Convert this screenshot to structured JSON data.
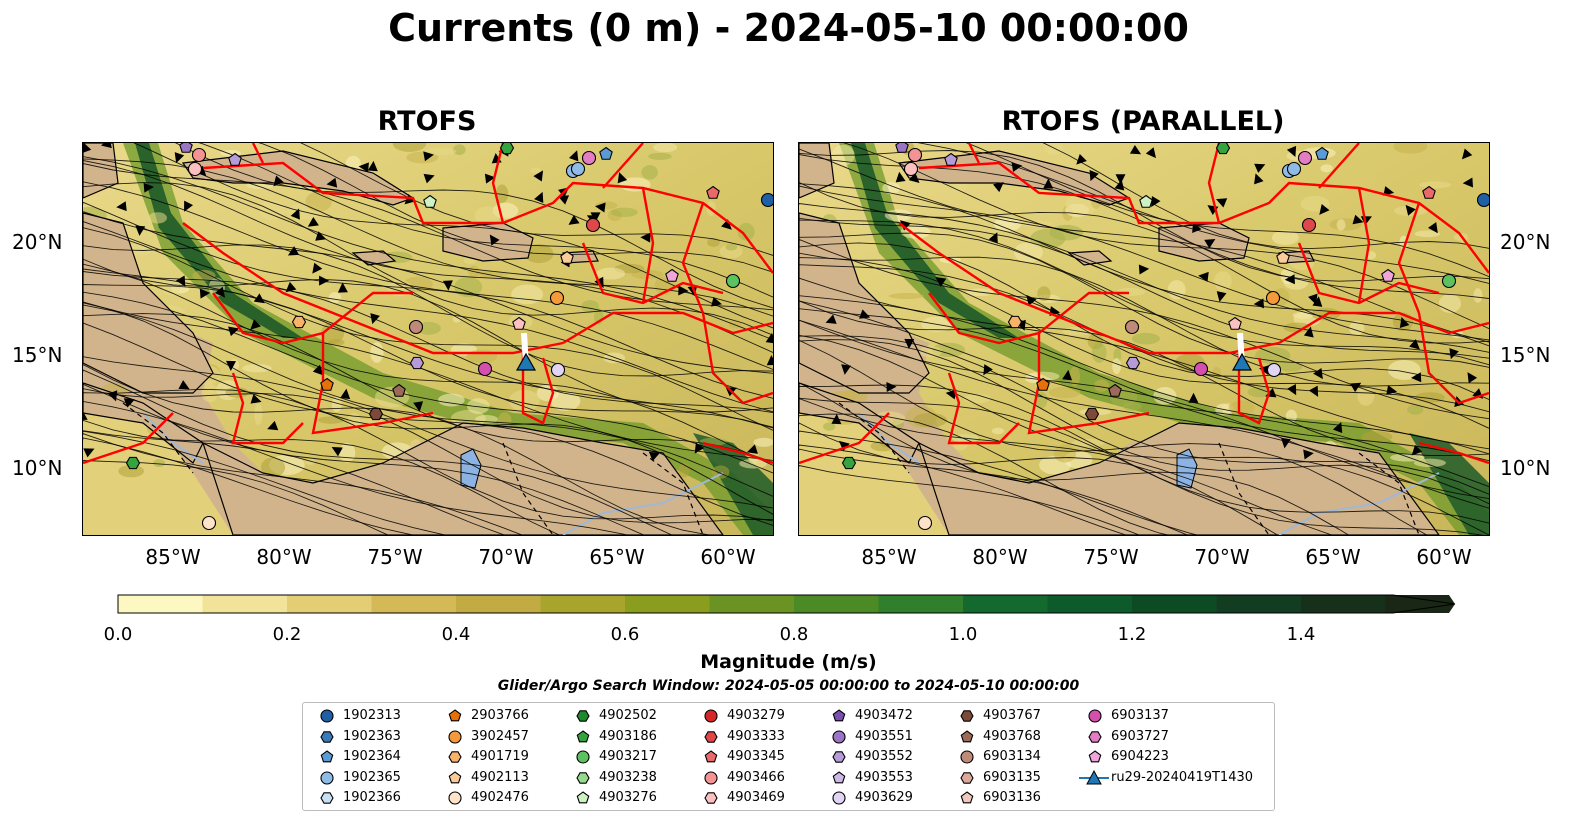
{
  "title": "Currents (0 m) - 2024-05-10 00:00:00",
  "panels": [
    {
      "title": "RTOFS"
    },
    {
      "title": "RTOFS (PARALLEL)"
    }
  ],
  "lat_labels": [
    "20°N",
    "15°N",
    "10°N"
  ],
  "lon_labels": [
    "85°W",
    "80°W",
    "75°W",
    "70°W",
    "65°W",
    "60°W"
  ],
  "colorbar": {
    "label": "Magnitude (m/s)",
    "tick_labels": [
      "0.0",
      "0.2",
      "0.4",
      "0.6",
      "0.8",
      "1.0",
      "1.2",
      "1.4"
    ],
    "colors": [
      "#fdf8c2",
      "#f1e39a",
      "#e3cd75",
      "#d5b957",
      "#c2ab42",
      "#a9a52c",
      "#8a9d1f",
      "#6b9323",
      "#4c8a26",
      "#2f7f2c",
      "#14692f",
      "#0d5a2a",
      "#0d4b25",
      "#123d20",
      "#17301a",
      "#1a2616"
    ]
  },
  "search_window": "Glider/Argo Search Window: 2024-05-05 00:00:00 to 2024-05-10 00:00:00",
  "legend": [
    [
      {
        "label": "1902313",
        "marker": "circle",
        "color": "#1f5fa6"
      },
      {
        "label": "1902363",
        "marker": "hexagon",
        "color": "#3a7ab8"
      },
      {
        "label": "1902364",
        "marker": "pentagon",
        "color": "#5b9bd5"
      },
      {
        "label": "1902365",
        "marker": "circle",
        "color": "#8fbce6"
      },
      {
        "label": "1902366",
        "marker": "hexagon",
        "color": "#c8e0f4"
      }
    ],
    [
      {
        "label": "2903766",
        "marker": "pentagon",
        "color": "#e6700a"
      },
      {
        "label": "3902457",
        "marker": "circle",
        "color": "#f59a3a"
      },
      {
        "label": "4901719",
        "marker": "hexagon",
        "color": "#f8b26a"
      },
      {
        "label": "4902113",
        "marker": "pentagon",
        "color": "#fbcb99"
      },
      {
        "label": "4902476",
        "marker": "circle",
        "color": "#fde3c8"
      }
    ],
    [
      {
        "label": "4902502",
        "marker": "hexagon",
        "color": "#1f8a2c"
      },
      {
        "label": "4903186",
        "marker": "pentagon",
        "color": "#35a43f"
      },
      {
        "label": "4903217",
        "marker": "circle",
        "color": "#5cc15f"
      },
      {
        "label": "4903238",
        "marker": "hexagon",
        "color": "#97da8d"
      },
      {
        "label": "4903276",
        "marker": "pentagon",
        "color": "#cdf2c3"
      }
    ],
    [
      {
        "label": "4903279",
        "marker": "circle",
        "color": "#d62728"
      },
      {
        "label": "4903333",
        "marker": "hexagon",
        "color": "#e0474a"
      },
      {
        "label": "4903345",
        "marker": "pentagon",
        "color": "#ea6a6c"
      },
      {
        "label": "4903466",
        "marker": "circle",
        "color": "#f39393"
      },
      {
        "label": "4903469",
        "marker": "hexagon",
        "color": "#fbc0bf"
      }
    ],
    [
      {
        "label": "4903472",
        "marker": "pentagon",
        "color": "#7a4fb0"
      },
      {
        "label": "4903551",
        "marker": "circle",
        "color": "#9b74c6"
      },
      {
        "label": "4903552",
        "marker": "hexagon",
        "color": "#b69bd8"
      },
      {
        "label": "4903553",
        "marker": "pentagon",
        "color": "#cdb8e8"
      },
      {
        "label": "4903629",
        "marker": "circle",
        "color": "#e2d5f4"
      }
    ],
    [
      {
        "label": "4903767",
        "marker": "hexagon",
        "color": "#7d4a3a"
      },
      {
        "label": "4903768",
        "marker": "pentagon",
        "color": "#9c6a58"
      },
      {
        "label": "6903134",
        "marker": "circle",
        "color": "#c08a7a"
      },
      {
        "label": "6903135",
        "marker": "hexagon",
        "color": "#dca89c"
      },
      {
        "label": "6903136",
        "marker": "pentagon",
        "color": "#f1c8bc"
      }
    ],
    [
      {
        "label": "6903137",
        "marker": "circle",
        "color": "#d44fae"
      },
      {
        "label": "6903727",
        "marker": "hexagon",
        "color": "#e47cc4"
      },
      {
        "label": "6904223",
        "marker": "pentagon",
        "color": "#efa6d8"
      },
      {
        "label": "ru29-20240419T1430",
        "marker": "triangle-line",
        "color": "#1f77b4"
      }
    ]
  ]
}
